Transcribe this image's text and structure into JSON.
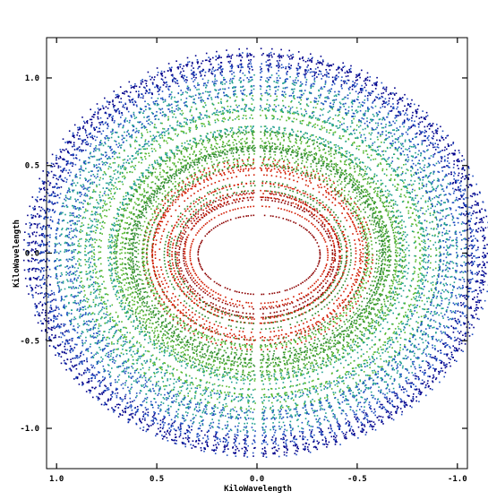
{
  "chart_data": {
    "type": "scatter",
    "title": "",
    "xlabel": "KiloWavelength",
    "ylabel": "KiloWavelength",
    "xlim": [
      1.05,
      -1.05
    ],
    "ylim": [
      -1.23,
      1.23
    ],
    "x_ticks": [
      1.0,
      0.5,
      0.0,
      -0.5,
      -1.0
    ],
    "x_tick_labels": [
      "1.0",
      "0.5",
      "0.0",
      "-0.5",
      "-1.0"
    ],
    "y_ticks": [
      1.0,
      0.5,
      0.0,
      -0.5,
      -1.0
    ],
    "y_tick_labels": [
      "1.0",
      "0.5",
      "0.0",
      "-0.5",
      "-1.0"
    ],
    "grid": false,
    "uv_coverage": {
      "shape": "elliptical annulus (uv-plane coverage)",
      "outer_radius_x": 1.17,
      "outer_radius_y": 1.17,
      "inner_radius_x": 0.28,
      "inner_radius_y": 0.19,
      "gap_near_u": 0.0,
      "color_scale": [
        "#8b0000",
        "#d21a00",
        "#2e8b2e",
        "#55b82e",
        "#1f9f8f",
        "#1f4fc0",
        "#00008b"
      ],
      "color_meaning": "red near center, green/teal mid radius, blue at outer edge"
    }
  }
}
